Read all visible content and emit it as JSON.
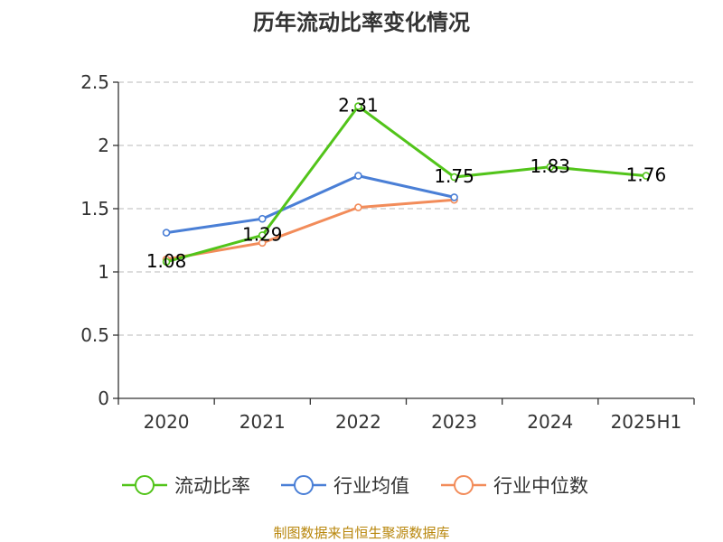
{
  "chart_data": {
    "type": "line",
    "title": "历年流动比率变化情况",
    "categories": [
      "2020",
      "2021",
      "2022",
      "2023",
      "2024",
      "2025H1"
    ],
    "ylim": [
      0,
      2.5
    ],
    "yticks": [
      "0",
      "0.5",
      "1",
      "1.5",
      "2",
      "2.5"
    ],
    "grid": true,
    "legend_position": "bottom",
    "series": [
      {
        "name": "流动比率",
        "color": "#52c41a",
        "values": [
          1.08,
          1.29,
          2.31,
          1.75,
          1.83,
          1.76
        ],
        "labels": [
          "1.08",
          "1.29",
          "2.31",
          "1.75",
          "1.83",
          "1.76"
        ]
      },
      {
        "name": "行业均值",
        "color": "#4a7fd6",
        "values": [
          1.31,
          1.42,
          1.76,
          1.59,
          null,
          null
        ]
      },
      {
        "name": "行业中位数",
        "color": "#f28c5a",
        "values": [
          1.1,
          1.23,
          1.51,
          1.57,
          null,
          null
        ]
      }
    ]
  },
  "source": "制图数据来自恒生聚源数据库"
}
